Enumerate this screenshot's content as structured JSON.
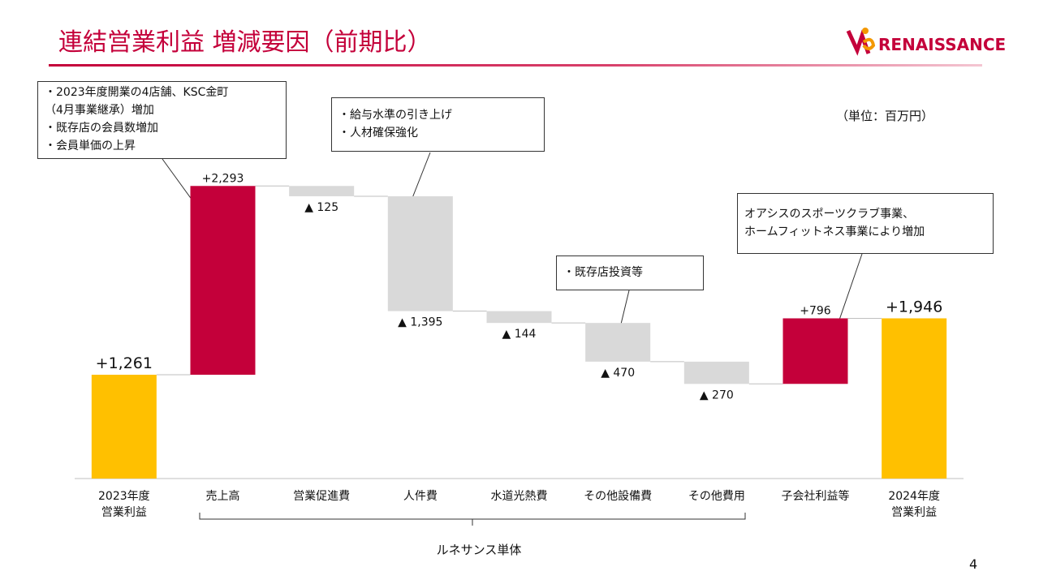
{
  "chart_data": {
    "type": "waterfall",
    "title": "連結営業利益 増減要因（前期比）",
    "logo": "RENAISSANCE",
    "unit_note": "（単位：百万円）",
    "page_number": "4",
    "categories": [
      "2023年度\n営業利益",
      "売上高",
      "営業促進費",
      "人件費",
      "水道光熱費",
      "その他設備費",
      "その他費用",
      "子会社利益等",
      "2024年度\n営業利益"
    ],
    "measures": [
      "total",
      "relative",
      "relative",
      "relative",
      "relative",
      "relative",
      "relative",
      "relative",
      "total"
    ],
    "values": [
      1261,
      2293,
      -125,
      -1395,
      -144,
      -470,
      -270,
      796,
      1946
    ],
    "value_labels": [
      "+1,261",
      "+2,293",
      "▲ 125",
      "▲ 1,395",
      "▲ 144",
      "▲ 470",
      "▲ 270",
      "+796",
      "+1,946"
    ],
    "total_color": "#ffc000",
    "increase_color": "#c4003a",
    "decrease_color": "#d9d9d9",
    "ylim": [
      0,
      4000
    ],
    "group_label": "ルネサンス単体",
    "annotations": [
      "・2023年度開業の4店舗、KSC金町\n（4月事業継承）増加\n・既存店の会員数増加\n・会員単価の上昇",
      "・給与水準の引き上げ\n・人材確保強化",
      "・既存店投資等",
      "オアシスのスポーツクラブ事業、\nホームフィットネス事業により増加"
    ]
  }
}
